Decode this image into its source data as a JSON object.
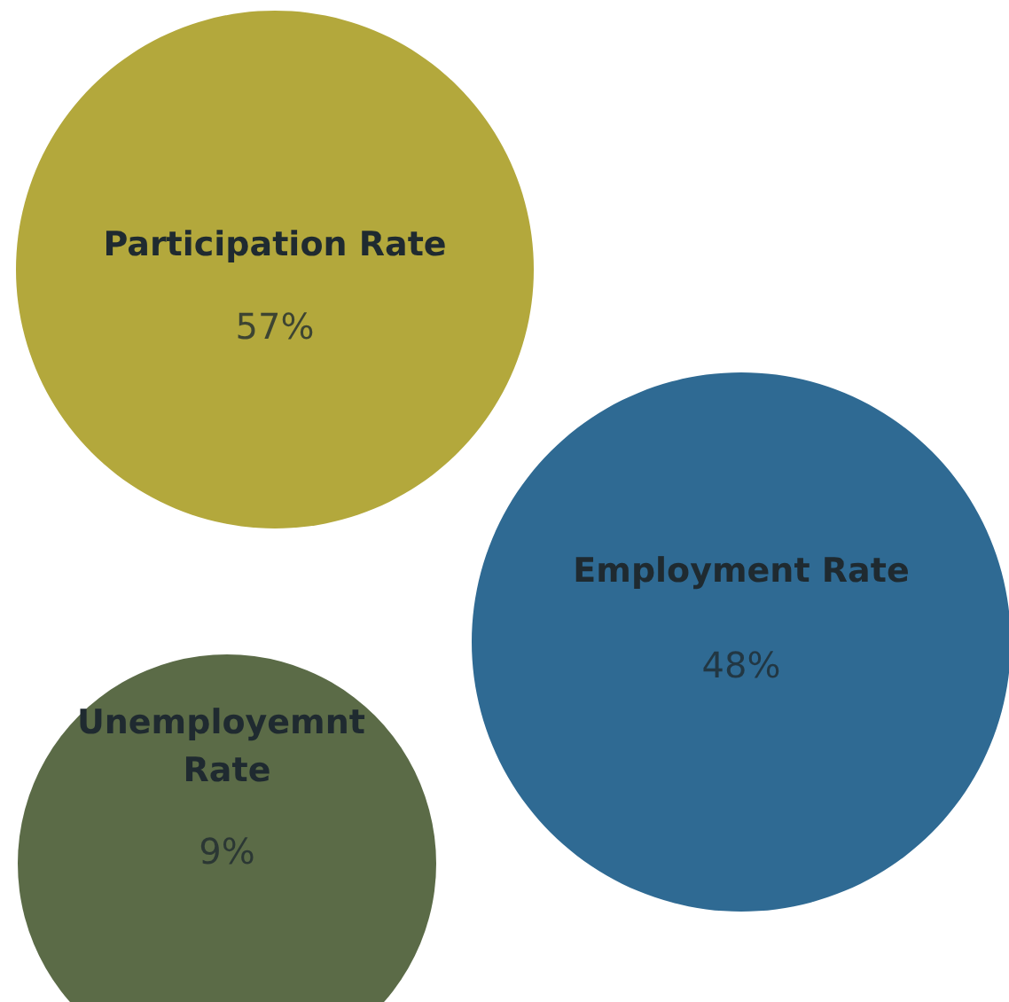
{
  "chart_data": {
    "type": "other",
    "categories": [
      "Participation Rate",
      "Employment Rate",
      "Unemployemnt Rate"
    ],
    "values": [
      57,
      48,
      9
    ],
    "value_labels": [
      "57%",
      "48%",
      "9%"
    ],
    "colors": [
      "#b3a83c",
      "#2f6a93",
      "#5b6b47"
    ]
  }
}
